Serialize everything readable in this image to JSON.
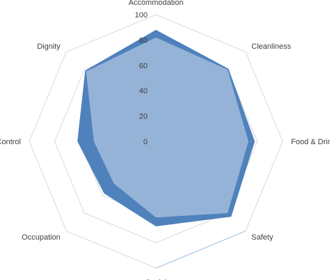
{
  "chart_data": {
    "type": "radar",
    "categories": [
      "Accommodation",
      "Cleanliness",
      "Food & Drink",
      "Safety",
      "Social",
      "Occupation",
      "Control",
      "Dignity"
    ],
    "series": [
      {
        "values": [
          88,
          81,
          78,
          84,
          67,
          58,
          62,
          79
        ],
        "color": "#4F81BD"
      },
      {
        "values": [
          82,
          80,
          73,
          80,
          60,
          47,
          49,
          78
        ],
        "color": "#95B3D7"
      }
    ],
    "rlim": [
      0,
      100
    ],
    "ticks": [
      0,
      20,
      40,
      60,
      80,
      100
    ],
    "tick_labels": [
      "0",
      "20",
      "40",
      "60",
      "80",
      "100"
    ],
    "grid": true,
    "gridline_color": "#D9D9D9",
    "highlight_edge_color": "#9DC3E6"
  }
}
